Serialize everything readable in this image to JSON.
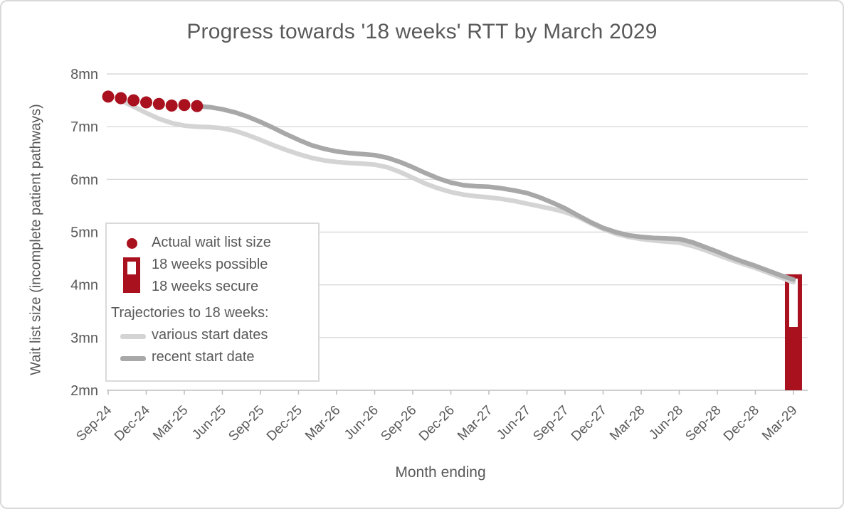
{
  "chart_data": {
    "type": "combo",
    "title": "Progress towards '18 weeks' RTT by March 2029",
    "xlabel": "Month ending",
    "ylabel": "Wait list size (incomplete patient pathways)",
    "ylim": [
      2,
      8
    ],
    "grid": "horizontal",
    "legend_position": "inside-left",
    "ytick_labels": [
      "8mn",
      "7mn",
      "6mn",
      "5mn",
      "4mn",
      "3mn",
      "2mn"
    ],
    "ytick_values": [
      8,
      7,
      6,
      5,
      4,
      3,
      2
    ],
    "months_span": 55,
    "xtick_every_months": 3,
    "xtick_labels": [
      "Sep-24",
      "Dec-24",
      "Mar-25",
      "Jun-25",
      "Sep-25",
      "Dec-25",
      "Mar-26",
      "Jun-26",
      "Sep-26",
      "Dec-26",
      "Mar-27",
      "Jun-27",
      "Sep-27",
      "Dec-27",
      "Mar-28",
      "Jun-28",
      "Sep-28",
      "Dec-28",
      "Mar-29"
    ],
    "series": [
      {
        "name": "Actual wait list size",
        "type": "scatter",
        "start_month": 0,
        "color_key": "red",
        "values": [
          7.57,
          7.54,
          7.5,
          7.46,
          7.43,
          7.4,
          7.41,
          7.39
        ]
      },
      {
        "name": "various start dates",
        "type": "line",
        "start_month": 1,
        "color_key": "light_gray",
        "values": [
          7.5,
          7.38,
          7.26,
          7.15,
          7.07,
          7.02,
          7.0,
          6.99,
          6.97,
          6.92,
          6.84,
          6.75,
          6.65,
          6.56,
          6.48,
          6.41,
          6.36,
          6.33,
          6.31,
          6.3,
          6.28,
          6.23,
          6.14,
          6.03,
          5.92,
          5.83,
          5.76,
          5.71,
          5.68,
          5.66,
          5.63,
          5.59,
          5.54,
          5.49,
          5.44,
          5.38,
          5.29,
          5.17,
          5.06,
          4.97,
          4.91,
          4.87,
          4.84,
          4.82,
          4.8,
          4.74,
          4.66,
          4.57,
          4.48,
          4.4,
          4.32,
          4.23,
          4.14,
          4.05
        ]
      },
      {
        "name": "recent start date",
        "type": "line",
        "start_month": 7,
        "color_key": "dark_gray",
        "values": [
          7.39,
          7.37,
          7.33,
          7.27,
          7.19,
          7.09,
          6.98,
          6.86,
          6.75,
          6.65,
          6.58,
          6.53,
          6.5,
          6.48,
          6.46,
          6.41,
          6.33,
          6.23,
          6.12,
          6.02,
          5.94,
          5.89,
          5.87,
          5.86,
          5.83,
          5.79,
          5.74,
          5.66,
          5.56,
          5.45,
          5.32,
          5.19,
          5.08,
          5.0,
          4.94,
          4.91,
          4.89,
          4.88,
          4.87,
          4.81,
          4.72,
          4.63,
          4.53,
          4.44,
          4.36,
          4.27,
          4.18,
          4.1
        ]
      }
    ],
    "bar": {
      "label": "Mar-29",
      "month": 54,
      "base": 2.0,
      "secure_top": 3.2,
      "possible_top": 4.2
    },
    "legend": {
      "actual": "Actual wait list size",
      "possible": "18 weeks possible",
      "secure": "18 weeks secure",
      "trajectories_heading": "Trajectories to 18 weeks:",
      "various": "various start dates",
      "recent": "recent start date"
    },
    "colors": {
      "red": "#A9111E",
      "dark_gray": "#A8A8A8",
      "light_gray": "#D4D4D4",
      "gridline": "#DADADA",
      "axis": "#BFBFBF",
      "text": "#595959"
    }
  }
}
